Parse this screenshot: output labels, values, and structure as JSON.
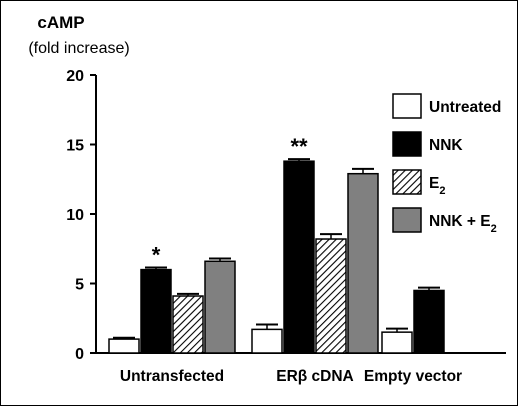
{
  "chart_data": {
    "type": "bar",
    "title": "cAMP",
    "ylabel": "(fold increase)",
    "xlabel": "",
    "ylim": [
      0,
      20
    ],
    "yticks": [
      0,
      5,
      10,
      15,
      20
    ],
    "categories": [
      "Untransfected",
      "ERβ cDNA",
      "Empty vector"
    ],
    "series": [
      {
        "name": "Untreated",
        "legend_main": "Untreated",
        "legend_sub": "",
        "legend_suffix": "",
        "fill": "#ffffff",
        "pattern": "none",
        "values": [
          1.0,
          1.7,
          1.5
        ],
        "errors": [
          0.1,
          0.35,
          0.25
        ]
      },
      {
        "name": "NNK",
        "legend_main": "NNK",
        "legend_sub": "",
        "legend_suffix": "",
        "fill": "#000000",
        "pattern": "none",
        "values": [
          6.0,
          13.8,
          4.5
        ],
        "errors": [
          0.15,
          0.15,
          0.2
        ]
      },
      {
        "name": "E2",
        "legend_main": "E",
        "legend_sub": "2",
        "legend_suffix": "",
        "fill": "#ffffff",
        "pattern": "diagonal-hatch",
        "values": [
          4.1,
          8.2,
          null
        ],
        "errors": [
          0.15,
          0.35,
          null
        ]
      },
      {
        "name": "NNK + E2",
        "legend_main": "NNK + E",
        "legend_sub": "2",
        "legend_suffix": "",
        "fill": "#808080",
        "pattern": "none",
        "values": [
          6.6,
          12.9,
          null
        ],
        "errors": [
          0.2,
          0.35,
          null
        ]
      }
    ],
    "annotations": [
      {
        "text": "*",
        "category": 0,
        "series": 1
      },
      {
        "text": "**",
        "category": 1,
        "series": 1
      }
    ],
    "legend_position": "right",
    "grid": false
  }
}
